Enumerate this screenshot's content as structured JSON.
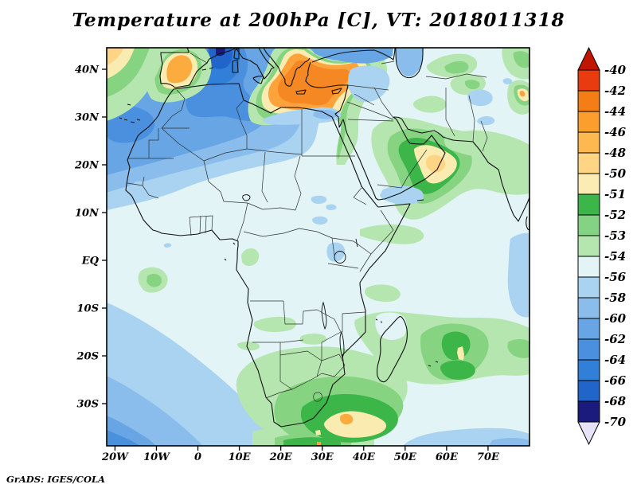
{
  "title": "Temperature at 200hPa [C], VT: 2018011318",
  "credit": "GrADS: IGES/COLA",
  "axes": {
    "x_ticks": [
      {
        "label": "20W",
        "lon": -20
      },
      {
        "label": "10W",
        "lon": -10
      },
      {
        "label": "0",
        "lon": 0
      },
      {
        "label": "10E",
        "lon": 10
      },
      {
        "label": "20E",
        "lon": 20
      },
      {
        "label": "30E",
        "lon": 30
      },
      {
        "label": "40E",
        "lon": 40
      },
      {
        "label": "50E",
        "lon": 50
      },
      {
        "label": "60E",
        "lon": 60
      },
      {
        "label": "70E",
        "lon": 70
      }
    ],
    "y_ticks": [
      {
        "label": "40N",
        "lat": 40
      },
      {
        "label": "30N",
        "lat": 30
      },
      {
        "label": "20N",
        "lat": 20
      },
      {
        "label": "10N",
        "lat": 10
      },
      {
        "label": "EQ",
        "lat": 0
      },
      {
        "label": "10S",
        "lat": -10
      },
      {
        "label": "20S",
        "lat": -20
      },
      {
        "label": "30S",
        "lat": -30
      }
    ]
  },
  "colorbar": {
    "boundary_labels": [
      "-40",
      "-42",
      "-44",
      "-46",
      "-48",
      "-50",
      "-51",
      "-52",
      "-53",
      "-54",
      "-56",
      "-58",
      "-60",
      "-62",
      "-64",
      "-66",
      "-68",
      "-70"
    ],
    "segment_colors": [
      "#e93b10",
      "#f57d16",
      "#fb9e2d",
      "#fdb84f",
      "#fdd584",
      "#faecb2",
      "#3cb649",
      "#84d284",
      "#b5e6b0",
      "#e2f4f6",
      "#a9d3f0",
      "#8abdeb",
      "#67a5e4",
      "#4a90df",
      "#327fd9",
      "#2165cb",
      "#1b1b7e"
    ],
    "arrow_top_color": "#c21500",
    "arrow_bottom_color": "#e7e2f8"
  },
  "chart_data": {
    "type": "heatmap",
    "title": "Temperature at 200hPa [C], VT: 2018011318",
    "variable": "Temperature",
    "level": "200hPa",
    "units": "C",
    "valid_time": "2018011318",
    "renderer": "GrADS: IGES/COLA",
    "lon_range": [
      -22,
      80
    ],
    "lat_range": [
      -38.8,
      44.5
    ],
    "x_tick_labels": [
      "20W",
      "10W",
      "0",
      "10E",
      "20E",
      "30E",
      "40E",
      "50E",
      "60E",
      "70E"
    ],
    "y_tick_labels": [
      "40N",
      "30N",
      "20N",
      "10N",
      "EQ",
      "10S",
      "20S",
      "30S"
    ],
    "contour_levels_C": [
      -70,
      -68,
      -66,
      -64,
      -62,
      -60,
      -58,
      -56,
      -54,
      -53,
      -52,
      -51,
      -50,
      -48,
      -46,
      -44,
      -42,
      -40
    ],
    "legend_position": "right",
    "grid": false,
    "features": [
      {
        "region": "NE Atlantic corner / NW of Iberia",
        "approx_lon": -18,
        "approx_lat": 43,
        "value_C": "-48 to -51 (warm)"
      },
      {
        "region": "Portugal / western Spain",
        "approx_lon": -7,
        "approx_lat": 40,
        "value_C": "-44 to -48 (warm core)"
      },
      {
        "region": "Gulf of Lion / NW Mediterranean / S France",
        "approx_lon": 6,
        "approx_lat": 43,
        "value_C": "-64 to -70 (cold core)"
      },
      {
        "region": "Ionian Sea / Greece / Turkey / E Mediterranean",
        "approx_lon": 30,
        "approx_lat": 37,
        "value_C": "-42 to -48 (warm core)"
      },
      {
        "region": "North Africa zonal band (Morocco-Libya)",
        "approx_lon": 5,
        "approx_lat": 28,
        "value_C": "-56 to -64"
      },
      {
        "region": "Equatorial Africa background",
        "approx_lon": 20,
        "approx_lat": 0,
        "value_C": "-54 to -56"
      },
      {
        "region": "SE Arabia / NW Arabian Sea",
        "approx_lon": 56,
        "approx_lat": 20,
        "value_C": "-46 to -51 (warm core)"
      },
      {
        "region": "SW Indian Ocean east of Madagascar",
        "approx_lon": 62,
        "approx_lat": -18,
        "value_C": "-50 to -53 (small -50 core)"
      },
      {
        "region": "South of South Africa",
        "approx_lon": 33,
        "approx_lat": -34,
        "value_C": "-44 to -51 (warm blob with orange core)"
      },
      {
        "region": "South Atlantic SW corner",
        "approx_lon": -20,
        "approx_lat": -36,
        "value_C": "-56 to -64 (cold)"
      },
      {
        "region": "Pamir/Himalaya right edge spot",
        "approx_lon": 78,
        "approx_lat": 34,
        "value_C": "-44 to -48 (small warm spot)"
      }
    ]
  }
}
